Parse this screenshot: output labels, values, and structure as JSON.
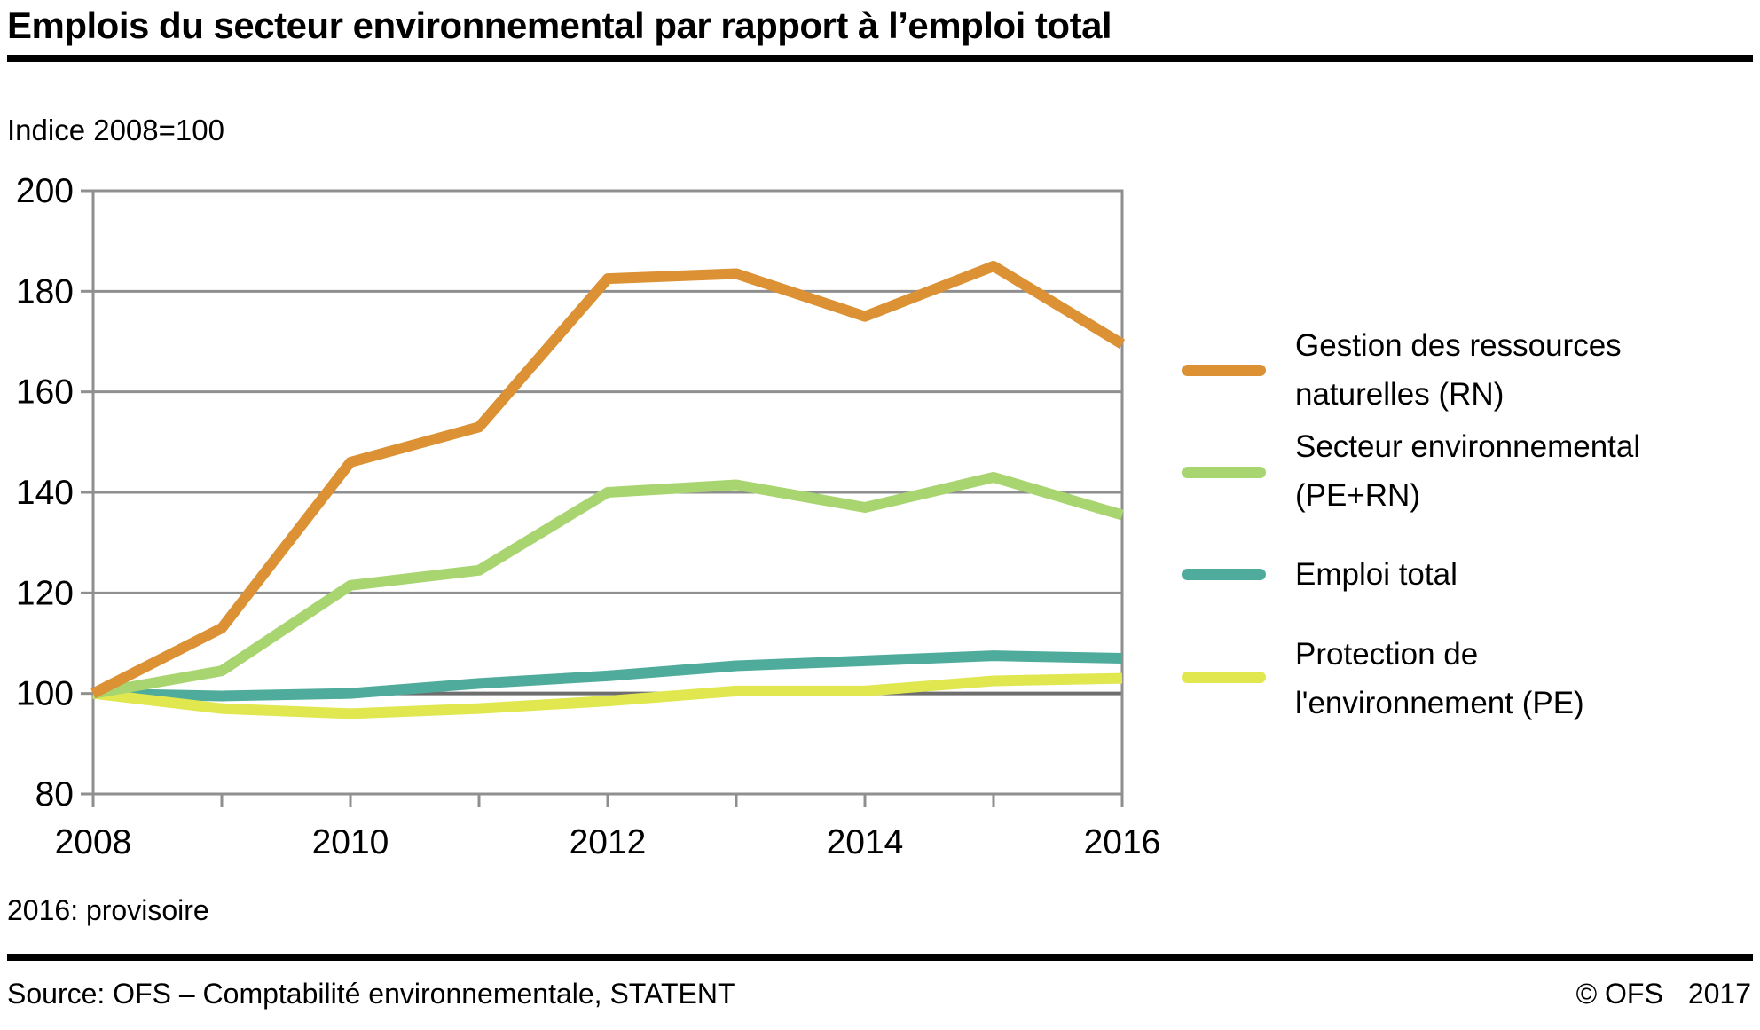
{
  "title": "Emplois du secteur environnemental par rapport à l’emploi total",
  "subtitle": "Indice 2008=100",
  "footnote": "2016: provisoire",
  "source": "Source: OFS – Comptabilité environnementale, STATENT",
  "copyright": "© OFS",
  "copyright_year": "2017",
  "chart_data": {
    "type": "line",
    "title": "Emplois du secteur environnemental par rapport à l’emploi total",
    "ylabel": "Indice 2008=100",
    "xlabel": "",
    "xlim": [
      2008,
      2016
    ],
    "ylim": [
      80,
      200
    ],
    "grid": "horizontal",
    "legend_position": "right",
    "baseline_value": 100,
    "x": [
      2008,
      2009,
      2010,
      2011,
      2012,
      2013,
      2014,
      2015,
      2016
    ],
    "x_tick_years": [
      2008,
      2010,
      2012,
      2014,
      2016
    ],
    "x_tick_labels": [
      "2008",
      "2010",
      "2012",
      "2014",
      "2016"
    ],
    "y_ticks": [
      200,
      180,
      160,
      140,
      120,
      100,
      80
    ],
    "y_tick_labels": [
      "200",
      "180",
      "160",
      "140",
      "120",
      "100",
      "80"
    ],
    "series": [
      {
        "id": "rn",
        "name": "Gestion des ressources naturelles (RN)",
        "legend_lines": [
          "Gestion des ressources",
          "naturelles (RN)"
        ],
        "color": "#DB9134",
        "values": [
          100,
          113,
          146,
          153,
          182.5,
          183.5,
          175,
          185,
          169.5
        ]
      },
      {
        "id": "pe-rn",
        "name": "Secteur environnemental (PE+RN)",
        "legend_lines": [
          "Secteur environnemental",
          "(PE+RN)"
        ],
        "color": "#A9D571",
        "values": [
          100,
          104.5,
          121.5,
          124.5,
          140,
          141.5,
          137,
          143,
          135.5
        ]
      },
      {
        "id": "emploi-total",
        "name": "Emploi total",
        "legend_lines": [
          "Emploi total"
        ],
        "color": "#4FAC9C",
        "values": [
          100,
          99.5,
          100,
          102,
          103.5,
          105.5,
          106.5,
          107.5,
          107
        ]
      },
      {
        "id": "pe",
        "name": "Protection de l'environnement (PE)",
        "legend_lines": [
          "Protection de",
          "l'environnement (PE)"
        ],
        "color": "#E0E74F",
        "values": [
          100,
          97,
          96,
          97,
          98.5,
          100.5,
          100.5,
          102.5,
          103
        ]
      }
    ],
    "colors": {
      "grid": "#8F8F8F",
      "baseline": "#6E6E6E",
      "frame": "#8F8F8F",
      "tick": "#8F8F8F",
      "text": "#000000",
      "rule": "#000000"
    }
  }
}
